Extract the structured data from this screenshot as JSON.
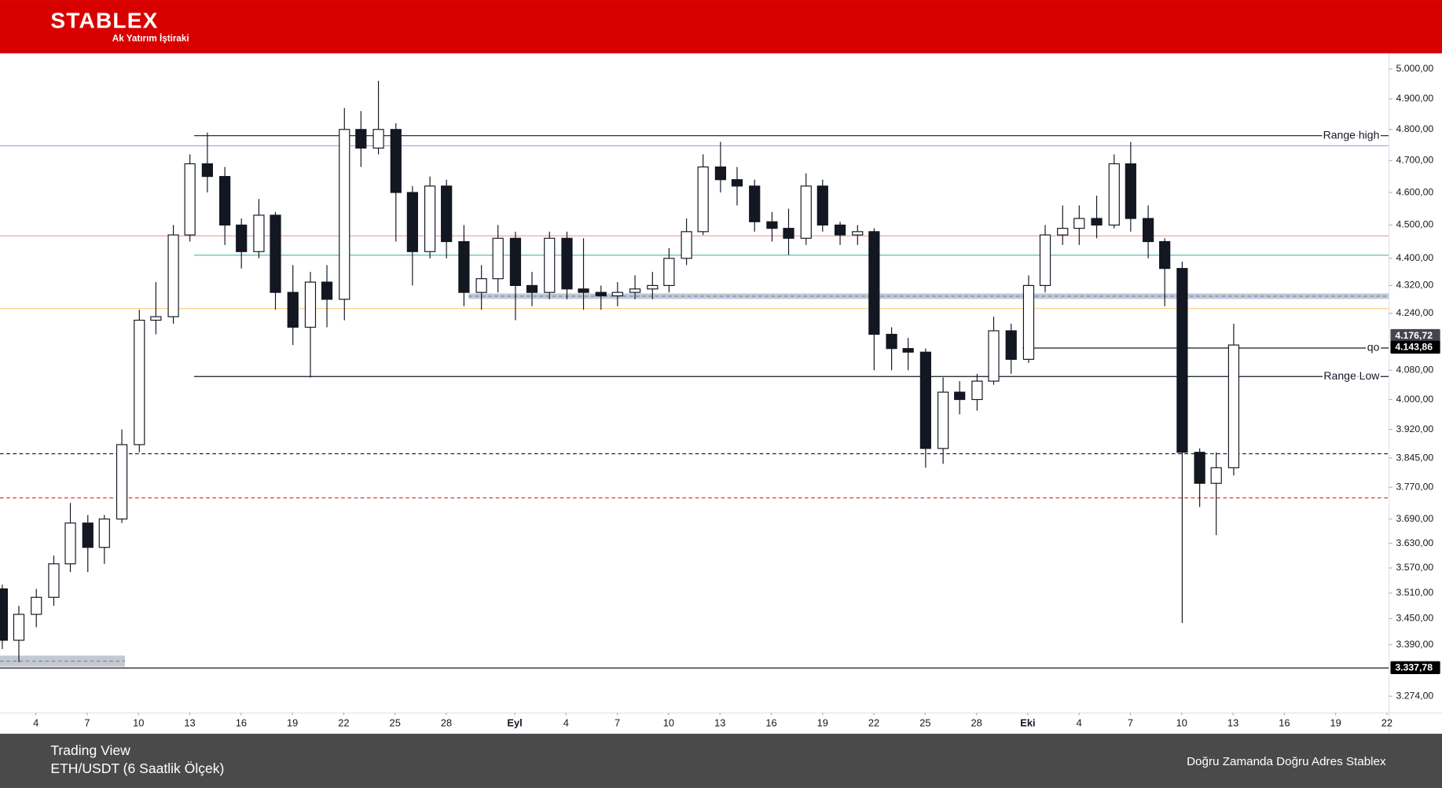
{
  "header": {
    "brand": "STABLEX",
    "tagline": "Ak Yatırım İştiraki"
  },
  "footer": {
    "source": "Trading View",
    "symbol": "ETH/USDT (6 Saatlik Ölçek)",
    "slogan": "Doğru Zamanda Doğru Adres Stablex"
  },
  "chart_data": {
    "type": "candlestick",
    "log": true,
    "up_color": "#ffffff",
    "down_color": "#131722",
    "edge_color": "#131722",
    "xlim": [
      1.9,
      83.1
    ],
    "xticks": [
      4,
      7,
      10,
      13,
      16,
      19,
      22,
      25,
      28,
      {
        "value": 32,
        "label": "Eyl"
      },
      {
        "value": 35,
        "label": "4"
      },
      {
        "value": 38,
        "label": "7"
      },
      {
        "value": 41,
        "label": "10"
      },
      {
        "value": 44,
        "label": "13"
      },
      {
        "value": 47,
        "label": "16"
      },
      {
        "value": 50,
        "label": "19"
      },
      {
        "value": 53,
        "label": "22"
      },
      {
        "value": 56,
        "label": "25"
      },
      {
        "value": 59,
        "label": "28"
      },
      {
        "value": 62,
        "label": "Eki"
      },
      {
        "value": 65,
        "label": "4"
      },
      {
        "value": 68,
        "label": "7"
      },
      {
        "value": 71,
        "label": "10"
      },
      {
        "value": 74,
        "label": "13"
      },
      {
        "value": 77,
        "label": "16"
      },
      {
        "value": 80,
        "label": "19"
      },
      {
        "value": 83,
        "label": "22"
      }
    ],
    "ylim": [
      3238,
      5053
    ],
    "yticks": [
      {
        "value": 5000,
        "label": "5.000,00"
      },
      {
        "value": 4900,
        "label": "4.900,00"
      },
      {
        "value": 4800,
        "label": "4.800,00"
      },
      {
        "value": 4700,
        "label": "4.700,00"
      },
      {
        "value": 4600,
        "label": "4.600,00"
      },
      {
        "value": 4500,
        "label": "4.500,00"
      },
      {
        "value": 4400,
        "label": "4.400,00"
      },
      {
        "value": 4320,
        "label": "4.320,00"
      },
      {
        "value": 4240,
        "label": "4.240,00"
      },
      {
        "value": 4080,
        "label": "4.080,00"
      },
      {
        "value": 4000,
        "label": "4.000,00"
      },
      {
        "value": 3920,
        "label": "3.920,00"
      },
      {
        "value": 3845,
        "label": "3.845,00"
      },
      {
        "value": 3770,
        "label": "3.770,00"
      },
      {
        "value": 3690,
        "label": "3.690,00"
      },
      {
        "value": 3630,
        "label": "3.630,00"
      },
      {
        "value": 3570,
        "label": "3.570,00"
      },
      {
        "value": 3510,
        "label": "3.510,00"
      },
      {
        "value": 3450,
        "label": "3.450,00"
      },
      {
        "value": 3390,
        "label": "3.390,00"
      },
      {
        "value": 3274,
        "label": "3.274,00"
      }
    ],
    "x": [
      2,
      3,
      4,
      5,
      6,
      7,
      8,
      9,
      10,
      11,
      12,
      13,
      14,
      15,
      16,
      17,
      18,
      19,
      20,
      21,
      22,
      23,
      24,
      25,
      26,
      27,
      28,
      29,
      30,
      31,
      32,
      33,
      34,
      35,
      36,
      37,
      38,
      39,
      40,
      41,
      42,
      43,
      44,
      45,
      46,
      47,
      48,
      49,
      50,
      51,
      52,
      53,
      54,
      55,
      56,
      57,
      58,
      59,
      60,
      61,
      62,
      63,
      64,
      65,
      66,
      67,
      68,
      69,
      70,
      71,
      72,
      73,
      74
    ],
    "open": [
      3520,
      3400,
      3460,
      3500,
      3580,
      3680,
      3620,
      3690,
      3880,
      4220,
      4230,
      4470,
      4690,
      4650,
      4500,
      4420,
      4530,
      4300,
      4200,
      4330,
      4280,
      4800,
      4740,
      4800,
      4600,
      4420,
      4620,
      4450,
      4300,
      4340,
      4460,
      4320,
      4300,
      4460,
      4310,
      4300,
      4290,
      4300,
      4310,
      4320,
      4400,
      4480,
      4680,
      4640,
      4620,
      4510,
      4490,
      4460,
      4620,
      4500,
      4470,
      4480,
      4180,
      4140,
      4130,
      3870,
      4020,
      4000,
      4050,
      4190,
      4110,
      4320,
      4470,
      4490,
      4520,
      4500,
      4690,
      4520,
      4450,
      4370,
      3860,
      3780,
      3820
    ],
    "high": [
      3530,
      3480,
      3520,
      3600,
      3730,
      3700,
      3700,
      3920,
      4250,
      4330,
      4500,
      4720,
      4790,
      4680,
      4520,
      4580,
      4540,
      4380,
      4360,
      4380,
      4870,
      4860,
      4960,
      4820,
      4620,
      4650,
      4640,
      4500,
      4380,
      4500,
      4480,
      4360,
      4480,
      4480,
      4460,
      4320,
      4330,
      4350,
      4360,
      4430,
      4520,
      4720,
      4760,
      4680,
      4640,
      4540,
      4550,
      4660,
      4640,
      4510,
      4500,
      4490,
      4200,
      4170,
      4140,
      4060,
      4050,
      4070,
      4230,
      4210,
      4350,
      4500,
      4560,
      4560,
      4590,
      4720,
      4760,
      4560,
      4460,
      4390,
      3870,
      3860,
      4210
    ],
    "low": [
      3380,
      3350,
      3430,
      3480,
      3560,
      3560,
      3580,
      3680,
      3860,
      4180,
      4210,
      4450,
      4600,
      4440,
      4370,
      4400,
      4250,
      4150,
      4060,
      4200,
      4220,
      4680,
      4720,
      4450,
      4320,
      4400,
      4400,
      4260,
      4250,
      4300,
      4220,
      4260,
      4280,
      4280,
      4250,
      4250,
      4260,
      4280,
      4280,
      4300,
      4380,
      4470,
      4600,
      4560,
      4480,
      4450,
      4410,
      4440,
      4480,
      4440,
      4440,
      4080,
      4080,
      4080,
      3820,
      3830,
      3960,
      3970,
      4040,
      4070,
      4100,
      4300,
      4440,
      4440,
      4460,
      4490,
      4480,
      4400,
      4260,
      3440,
      3720,
      3650,
      3800
    ],
    "close": [
      3400,
      3460,
      3500,
      3580,
      3680,
      3620,
      3690,
      3880,
      4220,
      4230,
      4470,
      4690,
      4650,
      4500,
      4420,
      4530,
      4300,
      4200,
      4330,
      4280,
      4800,
      4740,
      4800,
      4600,
      4420,
      4620,
      4450,
      4300,
      4340,
      4460,
      4320,
      4300,
      4460,
      4310,
      4300,
      4290,
      4300,
      4310,
      4320,
      4400,
      4480,
      4680,
      4640,
      4620,
      4510,
      4490,
      4460,
      4620,
      4500,
      4470,
      4480,
      4180,
      4140,
      4130,
      3870,
      4020,
      4000,
      4050,
      4190,
      4110,
      4320,
      4470,
      4490,
      4520,
      4500,
      4690,
      4520,
      4450,
      4370,
      3860,
      3780,
      3820,
      4150
    ],
    "zones": [
      {
        "from": 29.3,
        "to": 83.1,
        "low": 4281,
        "high": 4297,
        "color": "#b2b5be"
      },
      {
        "from": 1.9,
        "to": 9.2,
        "low": 3340,
        "high": 3365,
        "color": "#b2b5be"
      }
    ],
    "levels": [
      {
        "label": "Range high",
        "value": 4780,
        "from": 13.25,
        "color": "#131722",
        "dash": false
      },
      {
        "value": 4750,
        "from": 1.9,
        "color": "#b39ddb",
        "dash": false
      },
      {
        "value": 4470,
        "from": 1.9,
        "color": "#ef9a9a",
        "dash": false
      },
      {
        "value": 4410,
        "from": 13.25,
        "color": "#4db6ac",
        "dash": false
      },
      {
        "value": 4255,
        "from": 1.9,
        "color": "#ffcc80",
        "dash": false
      },
      {
        "label": "qo",
        "value": 4143.86,
        "from": 61.7,
        "color": "#131722",
        "dash": false
      },
      {
        "label": "Range Low",
        "value": 4065,
        "from": 13.25,
        "color": "#131722",
        "dash": false
      },
      {
        "value": 3858,
        "from": 1.9,
        "color": "#131722",
        "dash": true
      },
      {
        "value": 3745,
        "from": 1.9,
        "color": "#e53935",
        "dash": true
      },
      {
        "value": 3337.78,
        "from": 1.9,
        "color": "#131722",
        "dash": false
      }
    ],
    "price_labels": [
      {
        "value": 4176.72,
        "label": "4.176,72",
        "color": "#434651"
      },
      {
        "value": 4143.86,
        "label": "4.143,86",
        "color": "#000000"
      },
      {
        "value": 3337.78,
        "label": "3.337,78",
        "color": "#000000"
      }
    ]
  }
}
